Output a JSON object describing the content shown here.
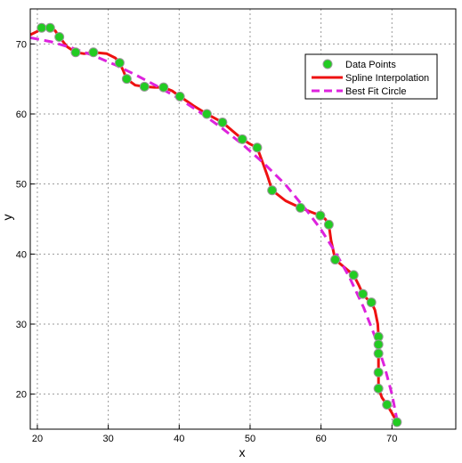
{
  "chart_data": {
    "type": "line",
    "title": "",
    "xlabel": "x",
    "ylabel": "y",
    "xlim": [
      19,
      79
    ],
    "ylim": [
      15,
      75
    ],
    "x_ticks": [
      20,
      30,
      40,
      50,
      60,
      70
    ],
    "y_ticks": [
      20,
      30,
      40,
      50,
      60,
      70
    ],
    "grid": true,
    "legend_position": "top-right",
    "legend": [
      "Data Points",
      "Spline Interpolation",
      "Best Fit Circle"
    ],
    "colors": {
      "data_points_fill": "#22cc22",
      "data_points_edge": "#999999",
      "spline": "#ee1111",
      "circle": "#dd22dd",
      "grid": "#999999"
    },
    "series": [
      {
        "name": "Data Points",
        "kind": "markers",
        "points": [
          [
            20.6,
            72.3
          ],
          [
            21.8,
            72.3
          ],
          [
            23.1,
            71.0
          ],
          [
            25.4,
            68.8
          ],
          [
            27.9,
            68.8
          ],
          [
            31.6,
            67.3
          ],
          [
            32.6,
            65.0
          ],
          [
            35.1,
            63.9
          ],
          [
            37.8,
            63.8
          ],
          [
            40.1,
            62.5
          ],
          [
            43.9,
            60.0
          ],
          [
            46.1,
            58.8
          ],
          [
            48.9,
            56.4
          ],
          [
            51.0,
            55.2
          ],
          [
            53.1,
            49.1
          ],
          [
            57.1,
            46.6
          ],
          [
            59.9,
            45.5
          ],
          [
            61.1,
            44.2
          ],
          [
            62.0,
            39.2
          ],
          [
            64.6,
            37.0
          ],
          [
            65.9,
            34.3
          ],
          [
            67.1,
            33.1
          ],
          [
            68.1,
            28.2
          ],
          [
            68.1,
            27.1
          ],
          [
            68.1,
            25.8
          ],
          [
            68.1,
            23.1
          ],
          [
            68.1,
            20.8
          ],
          [
            69.3,
            18.5
          ],
          [
            70.7,
            16.0
          ]
        ]
      },
      {
        "name": "Spline Interpolation",
        "kind": "line",
        "points": [
          [
            19.0,
            71.3
          ],
          [
            20.0,
            71.8
          ],
          [
            20.6,
            72.3
          ],
          [
            21.2,
            72.4
          ],
          [
            21.8,
            72.3
          ],
          [
            22.5,
            71.9
          ],
          [
            23.1,
            71.0
          ],
          [
            24.2,
            69.6
          ],
          [
            25.4,
            68.8
          ],
          [
            26.6,
            68.6
          ],
          [
            27.9,
            68.8
          ],
          [
            29.8,
            68.6
          ],
          [
            31.0,
            68.0
          ],
          [
            31.6,
            67.3
          ],
          [
            32.1,
            66.2
          ],
          [
            32.6,
            65.0
          ],
          [
            33.8,
            64.1
          ],
          [
            35.1,
            63.9
          ],
          [
            36.5,
            63.8
          ],
          [
            37.8,
            63.8
          ],
          [
            39.0,
            63.3
          ],
          [
            40.1,
            62.5
          ],
          [
            42.0,
            61.2
          ],
          [
            43.9,
            60.0
          ],
          [
            45.0,
            59.4
          ],
          [
            46.1,
            58.8
          ],
          [
            47.5,
            57.6
          ],
          [
            48.9,
            56.4
          ],
          [
            50.0,
            55.7
          ],
          [
            51.0,
            55.2
          ],
          [
            51.8,
            53.0
          ],
          [
            52.5,
            51.0
          ],
          [
            53.1,
            49.1
          ],
          [
            55.0,
            47.6
          ],
          [
            57.1,
            46.6
          ],
          [
            58.6,
            46.0
          ],
          [
            59.9,
            45.5
          ],
          [
            60.6,
            45.0
          ],
          [
            61.1,
            44.2
          ],
          [
            61.4,
            42.0
          ],
          [
            62.0,
            39.2
          ],
          [
            63.3,
            38.1
          ],
          [
            64.6,
            37.0
          ],
          [
            65.3,
            35.6
          ],
          [
            65.9,
            34.3
          ],
          [
            66.5,
            33.6
          ],
          [
            67.1,
            33.1
          ],
          [
            67.6,
            32.0
          ],
          [
            68.0,
            30.0
          ],
          [
            68.1,
            28.2
          ],
          [
            68.1,
            25.8
          ],
          [
            68.1,
            23.1
          ],
          [
            68.1,
            20.8
          ],
          [
            68.6,
            19.5
          ],
          [
            69.3,
            18.5
          ],
          [
            70.0,
            17.3
          ],
          [
            70.7,
            16.0
          ]
        ]
      },
      {
        "name": "Best Fit Circle",
        "kind": "dashed-line",
        "points": [
          [
            19.0,
            70.9
          ],
          [
            22.0,
            70.3
          ],
          [
            25.0,
            69.4
          ],
          [
            28.0,
            68.3
          ],
          [
            31.0,
            67.0
          ],
          [
            34.0,
            65.5
          ],
          [
            37.0,
            63.9
          ],
          [
            40.0,
            62.2
          ],
          [
            43.0,
            60.2
          ],
          [
            46.0,
            58.0
          ],
          [
            49.0,
            55.6
          ],
          [
            52.0,
            52.9
          ],
          [
            55.0,
            49.9
          ],
          [
            58.0,
            46.2
          ],
          [
            60.0,
            43.5
          ],
          [
            62.0,
            40.3
          ],
          [
            64.0,
            36.7
          ],
          [
            66.0,
            32.4
          ],
          [
            67.5,
            28.5
          ],
          [
            69.0,
            23.8
          ],
          [
            70.0,
            20.0
          ],
          [
            70.7,
            16.4
          ]
        ]
      }
    ]
  }
}
